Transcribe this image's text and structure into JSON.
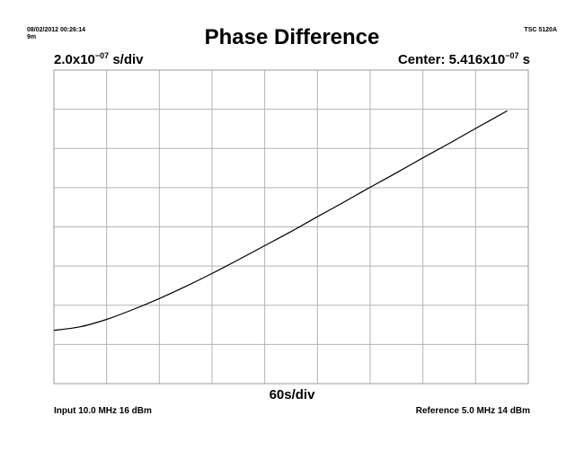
{
  "header": {
    "timestamp": "08/02/2012 00:26:14",
    "duration": "9m",
    "instrument": "TSC 5120A"
  },
  "chart_data": {
    "type": "line",
    "title": "Phase Difference",
    "y_scale_prefix": "2.0x10",
    "y_scale_exp": "−07",
    "y_scale_suffix": " s/div",
    "center_prefix": "Center: 5.416x10",
    "center_exp": "−07",
    "center_suffix": " s",
    "xlabel": "60s/div",
    "x_divisions": 9,
    "y_divisions": 8,
    "grid": true,
    "x_unit": "divisions",
    "y_unit": "divisions",
    "series": [
      {
        "x": [
          0,
          0.5,
          1,
          1.5,
          2,
          2.5,
          3,
          3.5,
          4,
          4.5,
          5,
          5.5,
          6,
          6.5,
          7,
          7.5,
          8,
          8.6
        ],
        "y": [
          1.36,
          1.45,
          1.64,
          1.89,
          2.17,
          2.48,
          2.81,
          3.16,
          3.52,
          3.88,
          4.26,
          4.63,
          5.01,
          5.38,
          5.76,
          6.13,
          6.51,
          6.96
        ]
      }
    ]
  },
  "footer": {
    "input": "Input 10.0 MHz 16 dBm",
    "reference": "Reference 5.0 MHz 14 dBm"
  }
}
